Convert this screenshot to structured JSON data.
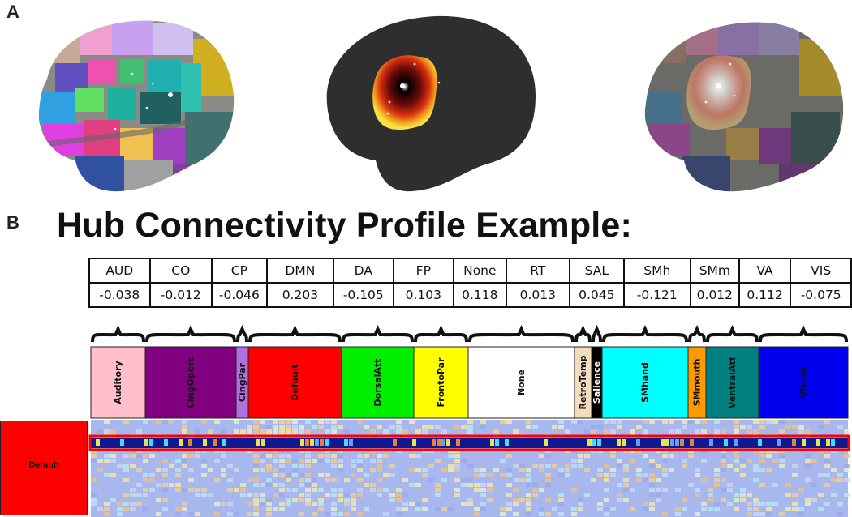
{
  "panels": {
    "a": "A",
    "b": "B"
  },
  "title": "Hub Connectivity Profile Example:",
  "table": {
    "headers": [
      "AUD",
      "CO",
      "CP",
      "DMN",
      "DA",
      "FP",
      "None",
      "RT",
      "SAL",
      "SMh",
      "SMm",
      "VA",
      "VIS"
    ],
    "values": [
      "-0.038",
      "-0.012",
      "-0.046",
      "0.203",
      "-0.105",
      "0.103",
      "0.118",
      "0.013",
      "0.045",
      "-0.121",
      "0.012",
      "0.112",
      "-0.075"
    ]
  },
  "networks": [
    {
      "name": "Auditory",
      "color": "#ffc0cb"
    },
    {
      "name": "CingOperc",
      "color": "#800080"
    },
    {
      "name": "CingPar",
      "color": "#b070e0"
    },
    {
      "name": "Default",
      "color": "#ff0000"
    },
    {
      "name": "DorsalAtt",
      "color": "#00ee00"
    },
    {
      "name": "FrontoPar",
      "color": "#ffff00"
    },
    {
      "name": "None",
      "color": "#ffffff"
    },
    {
      "name": "RetroTemp",
      "color": "#f4dcc0"
    },
    {
      "name": "Salience",
      "color": "#000000"
    },
    {
      "name": "SMhand",
      "color": "#00ffff"
    },
    {
      "name": "SMmouth",
      "color": "#ff9900"
    },
    {
      "name": "VentralAtt",
      "color": "#008080"
    },
    {
      "name": "Visual",
      "color": "#0000ee"
    }
  ],
  "row_label": "Default",
  "colors": {
    "highlight": "#ff0000",
    "arrow": "#000000",
    "matrix_base": "#a8b8ee"
  }
}
